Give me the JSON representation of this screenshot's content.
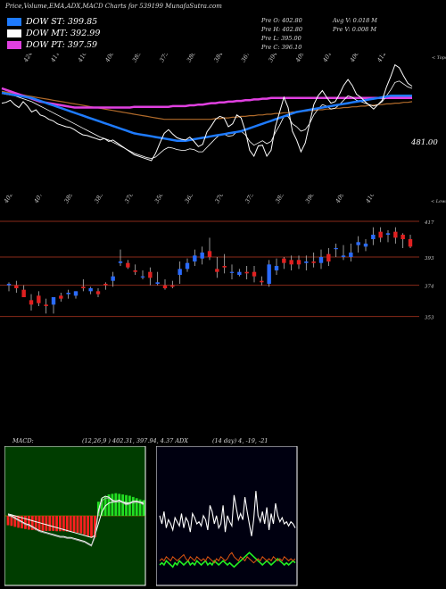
{
  "header": {
    "title": "Price,Volume,EMA,ADX,MACD Charts for 539199 MunafaSutra.com"
  },
  "legend": [
    {
      "label": "DOW ST: 399.85",
      "color": "#1e7bff"
    },
    {
      "label": "DOW MT: 392.99",
      "color": "#ffffff"
    },
    {
      "label": "DOW PT: 397.59",
      "color": "#e040e0"
    }
  ],
  "ohlc": {
    "open": "Pre   O: 402.80",
    "high": "Pre   H: 402.80",
    "low": "Pre   L: 395.00",
    "close": "Pre   C: 396.10",
    "avg_volume": "Avg V: 0.018  M",
    "prev_volume": "Pre   V: 0.008  M"
  },
  "chart_data": [
    {
      "type": "line",
      "panel": "price-ema",
      "top_labels": [
        "424",
        "411",
        "410",
        "408",
        "385",
        "375",
        "388",
        "384",
        "367",
        "394",
        "409",
        "401",
        "406",
        "412"
      ],
      "corner_label": "< Tops",
      "price_label": "481.00",
      "series": [
        {
          "values": [
            388,
            389,
            392,
            386,
            382,
            390,
            384,
            376,
            379,
            372,
            370,
            366,
            364,
            360,
            358,
            356,
            355,
            352,
            348,
            345,
            344,
            342,
            340,
            338,
            340,
            336,
            338,
            334,
            330,
            326,
            322,
            318,
            316,
            314,
            312,
            310,
            320,
            334,
            347,
            352,
            346,
            341,
            339,
            338,
            342,
            336,
            329,
            332,
            349,
            357,
            366,
            370,
            368,
            356,
            360,
            372,
            368,
            350,
            324,
            316,
            330,
            331,
            316,
            324,
            356,
            376,
            396,
            382,
            350,
            338,
            322,
            334,
            360,
            386,
            398,
            405,
            396,
            388,
            390,
            400,
            412,
            420,
            412,
            400,
            396,
            390,
            385,
            380,
            386,
            392,
            410,
            424,
            440,
            436,
            425,
            415,
            411
          ]
        },
        {
          "values": [
            408,
            406,
            404,
            402,
            400,
            398,
            396,
            394,
            392,
            390,
            389,
            388,
            387,
            386,
            385,
            384,
            383,
            382,
            382,
            382,
            382,
            382,
            382,
            382,
            382,
            382,
            382,
            382,
            382,
            382,
            382,
            383,
            383,
            383,
            383,
            383,
            383,
            383,
            383,
            383,
            384,
            384,
            384,
            384,
            385,
            385,
            386,
            386,
            387,
            388,
            388,
            389,
            389,
            390,
            390,
            391,
            391,
            392,
            392,
            393,
            393,
            394,
            394,
            395,
            395,
            395,
            395,
            395,
            395,
            395,
            395,
            395,
            395,
            395,
            395,
            395,
            395,
            395,
            395,
            395,
            395,
            395,
            395,
            395,
            395,
            395,
            395,
            395,
            395,
            395,
            395,
            395,
            395,
            395,
            395,
            395,
            395
          ]
        },
        {
          "values": [
            402,
            401,
            400,
            399,
            398,
            397,
            396,
            395,
            393,
            391,
            389,
            387,
            385,
            383,
            381,
            379,
            377,
            375,
            373,
            371,
            369,
            367,
            365,
            363,
            361,
            359,
            357,
            355,
            353,
            351,
            349,
            347,
            346,
            345,
            344,
            343,
            342,
            341,
            340,
            339,
            338,
            337,
            337,
            337,
            338,
            339,
            340,
            341,
            342,
            343,
            344,
            345,
            346,
            347,
            348,
            349,
            350,
            352,
            354,
            356,
            358,
            360,
            362,
            364,
            366,
            368,
            370,
            372,
            374,
            376,
            377,
            378,
            379,
            380,
            381,
            382,
            383,
            384,
            385,
            386,
            387,
            388,
            389,
            390,
            391,
            392,
            393,
            394,
            395,
            396,
            397,
            398,
            398,
            398,
            398,
            398,
            398
          ]
        },
        {
          "values": [
            401,
            400,
            399,
            398,
            396,
            394,
            392,
            390,
            387,
            384,
            381,
            378,
            375,
            372,
            369,
            366,
            363,
            360,
            357,
            354,
            351,
            348,
            345,
            342,
            340,
            338,
            335,
            332,
            329,
            326,
            323,
            320,
            318,
            316,
            314,
            313,
            315,
            320,
            325,
            328,
            327,
            325,
            324,
            324,
            326,
            325,
            322,
            322,
            328,
            334,
            340,
            345,
            346,
            343,
            344,
            349,
            350,
            345,
            336,
            331,
            334,
            337,
            333,
            336,
            348,
            358,
            370,
            370,
            360,
            356,
            350,
            352,
            360,
            372,
            380,
            386,
            384,
            380,
            381,
            386,
            392,
            398,
            396,
            392,
            390,
            388,
            386,
            384,
            386,
            390,
            398,
            406,
            416,
            418,
            414,
            410,
            408
          ]
        },
        {
          "values": [
            404,
            403,
            402,
            401,
            400,
            399,
            398,
            397,
            396,
            395,
            394,
            393,
            392,
            391,
            390,
            389,
            388,
            387,
            386,
            385,
            384,
            383,
            382,
            381,
            380,
            379,
            378,
            377,
            376,
            375,
            374,
            373,
            372,
            371,
            370,
            369,
            368,
            367,
            366,
            366,
            366,
            366,
            366,
            366,
            366,
            366,
            366,
            366,
            366,
            366,
            367,
            367,
            368,
            368,
            369,
            369,
            370,
            370,
            371,
            371,
            372,
            372,
            373,
            373,
            374,
            374,
            375,
            375,
            376,
            376,
            377,
            377,
            378,
            378,
            379,
            379,
            380,
            380,
            381,
            381,
            382,
            382,
            383,
            383,
            384,
            384,
            385,
            385,
            386,
            386,
            387,
            387,
            388,
            388,
            389,
            389,
            390
          ]
        }
      ]
    },
    {
      "type": "candlestick",
      "panel": "price",
      "top_labels": [
        "402",
        "407",
        "389",
        "383",
        "378",
        "350",
        "363",
        "370",
        "375",
        "385",
        "398",
        "409",
        "410"
      ],
      "corner_label": "< Lows",
      "y_ticks": [
        "417",
        "393",
        "374",
        "353"
      ],
      "ylim": [
        345,
        423
      ],
      "open": [
        374,
        374,
        371,
        364,
        367,
        361,
        361,
        367,
        368,
        367,
        373,
        370,
        370,
        375,
        377,
        389,
        389,
        384,
        380,
        383,
        375,
        374,
        374,
        381,
        385,
        390,
        392,
        397,
        385,
        387,
        383,
        381,
        383,
        383,
        377,
        375,
        384,
        392,
        391,
        391,
        389,
        390,
        389,
        395,
        399,
        393,
        393,
        401,
        400,
        405,
        410,
        408,
        410,
        408,
        405
      ],
      "high": [
        376,
        377,
        374,
        368,
        370,
        365,
        366,
        369,
        371,
        370,
        378,
        373,
        372,
        376,
        383,
        398,
        391,
        388,
        384,
        386,
        383,
        378,
        377,
        390,
        392,
        398,
        400,
        406,
        393,
        395,
        388,
        385,
        387,
        387,
        380,
        391,
        392,
        393,
        394,
        394,
        394,
        396,
        398,
        399,
        402,
        401,
        402,
        407,
        405,
        413,
        413,
        411,
        413,
        409,
        408
      ],
      "low": [
        370,
        369,
        366,
        357,
        360,
        355,
        355,
        363,
        365,
        365,
        370,
        368,
        366,
        371,
        373,
        387,
        385,
        381,
        378,
        374,
        374,
        371,
        372,
        375,
        383,
        387,
        388,
        391,
        379,
        382,
        378,
        380,
        378,
        376,
        374,
        373,
        381,
        385,
        384,
        385,
        384,
        386,
        385,
        387,
        393,
        391,
        390,
        396,
        397,
        401,
        403,
        403,
        402,
        399,
        399
      ],
      "close": [
        375,
        372,
        366,
        361,
        362,
        360,
        366,
        365,
        369,
        370,
        372,
        372,
        368,
        374,
        380,
        390,
        386,
        383,
        380,
        379,
        376,
        372,
        373,
        385,
        389,
        394,
        396,
        393,
        383,
        386,
        383,
        383,
        382,
        380,
        376,
        388,
        387,
        389,
        388,
        388,
        390,
        389,
        393,
        390,
        399,
        394,
        396,
        403,
        402,
        408,
        406,
        409,
        406,
        405,
        400
      ]
    },
    {
      "type": "bar",
      "panel": "macd",
      "histogram": [
        -0.3,
        -0.32,
        -0.35,
        -0.38,
        -0.4,
        -0.42,
        -0.44,
        -0.45,
        -0.46,
        -0.47,
        -0.48,
        -0.48,
        -0.48,
        -0.48,
        -0.49,
        -0.49,
        -0.49,
        -0.5,
        -0.5,
        -0.52,
        -0.54,
        -0.56,
        -0.6,
        -0.66,
        -0.7,
        -0.68,
        0.45,
        0.55,
        0.62,
        0.68,
        0.7,
        0.72,
        0.7,
        0.68,
        0.66,
        0.64,
        0.6,
        0.56,
        0.52,
        0.5
      ],
      "macd": [
        0.1,
        0.0,
        -0.2,
        -0.4,
        -0.6,
        -0.8,
        -0.9,
        -1.1,
        -1.3,
        -1.5,
        -1.6,
        -1.7,
        -1.8,
        -1.9,
        -2.0,
        -2.1,
        -2.1,
        -2.2,
        -2.2,
        -2.3,
        -2.4,
        -2.5,
        -2.6,
        -2.8,
        -3.0,
        -2.0,
        0.5,
        1.8,
        2.0,
        1.9,
        1.6,
        1.5,
        1.6,
        1.4,
        1.2,
        1.3,
        1.5,
        1.5,
        1.4,
        1.2
      ],
      "signal": [
        0.2,
        0.1,
        0.0,
        -0.1,
        -0.2,
        -0.3,
        -0.4,
        -0.5,
        -0.6,
        -0.7,
        -0.8,
        -0.9,
        -1.0,
        -1.1,
        -1.2,
        -1.3,
        -1.4,
        -1.5,
        -1.6,
        -1.7,
        -1.8,
        -1.9,
        -2.0,
        -2.1,
        -2.2,
        -2.0,
        -0.8,
        0.4,
        1.0,
        1.3,
        1.4,
        1.4,
        1.45,
        1.4,
        1.35,
        1.3,
        1.35,
        1.4,
        1.4,
        1.35
      ],
      "series": [
        {
          "values": [
            0.0,
            -0.1,
            -0.3,
            -0.5,
            -0.7,
            -0.9,
            -1.0,
            -1.2,
            -1.4,
            -1.6,
            -1.7,
            -1.8,
            -1.9,
            -2.0,
            -2.1,
            -2.2,
            -2.2,
            -2.3,
            -2.3,
            -2.4,
            -2.5,
            -2.6,
            -2.7,
            -2.9,
            -3.1,
            -2.2,
            0.2,
            1.5,
            1.8,
            1.8,
            1.5,
            1.4,
            1.5,
            1.3,
            1.1,
            1.2,
            1.4,
            1.4,
            1.3,
            1.1
          ]
        }
      ],
      "label": "MACD:",
      "values_text": "(12,26,9 ) 402.31, 397.94, 4.37"
    },
    {
      "type": "line",
      "panel": "adx",
      "label": "ADX",
      "values_text": "(14 day) 4, -19, -21",
      "series": [
        {
          "values": [
            34,
            30,
            36,
            28,
            32,
            30,
            27,
            33,
            31,
            29,
            35,
            28,
            33,
            31,
            26,
            35,
            33,
            30,
            31,
            29,
            34,
            32,
            27,
            39,
            36,
            30,
            34,
            28,
            30,
            39,
            26,
            34,
            31,
            29,
            44,
            38,
            32,
            35,
            32,
            43,
            36,
            30,
            24,
            32,
            46,
            34,
            31,
            36,
            30,
            38,
            27,
            35,
            30,
            40,
            34,
            31,
            33,
            30,
            31,
            29,
            31,
            30,
            28
          ]
        },
        {
          "values": [
            12,
            13,
            12,
            14,
            13,
            12,
            14,
            13,
            12,
            13,
            14,
            15,
            13,
            12,
            14,
            13,
            12,
            14,
            13,
            12,
            13,
            12,
            14,
            13,
            12,
            11,
            13,
            12,
            14,
            13,
            12,
            13,
            15,
            16,
            14,
            13,
            12,
            14,
            13,
            12,
            14,
            13,
            12,
            11,
            12,
            13,
            12,
            14,
            13,
            12,
            13,
            12,
            14,
            13,
            12,
            13,
            12,
            14,
            13,
            12,
            13,
            12,
            13
          ]
        },
        {
          "values": [
            10,
            11,
            10,
            12,
            11,
            10,
            9,
            11,
            10,
            12,
            11,
            10,
            11,
            12,
            10,
            11,
            10,
            12,
            11,
            10,
            11,
            12,
            10,
            11,
            10,
            12,
            11,
            10,
            11,
            12,
            11,
            10,
            11,
            10,
            9,
            10,
            11,
            12,
            13,
            14,
            15,
            16,
            15,
            14,
            13,
            12,
            11,
            10,
            11,
            12,
            11,
            10,
            11,
            12,
            13,
            12,
            11,
            10,
            11,
            10,
            11,
            12,
            11
          ]
        }
      ]
    }
  ]
}
